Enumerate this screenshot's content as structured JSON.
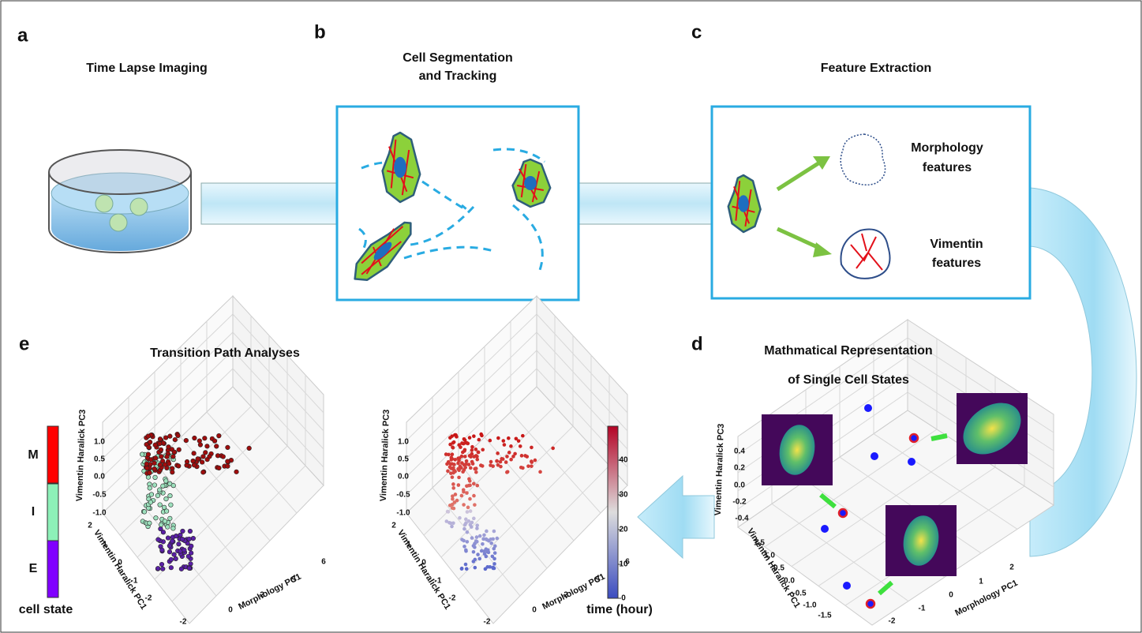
{
  "panel_a": {
    "letter": "a",
    "title": "Time Lapse Imaging"
  },
  "panel_b": {
    "letter": "b",
    "title": [
      "Cell Segmentation",
      "and Tracking"
    ]
  },
  "panel_c": {
    "letter": "c",
    "title": "Feature Extraction",
    "morphology_label": [
      "Morphology",
      "features"
    ],
    "vimentin_label": [
      "Vimentin",
      "features"
    ]
  },
  "panel_d": {
    "letter": "d",
    "title": [
      "Mathmatical Representation",
      "of Single Cell States"
    ],
    "plot": {
      "zlabel": "Vimentin Haralick PC3",
      "ylabel": "Vimentin Haralick PC1",
      "xlabel": "Morphology PC1",
      "zticks": [
        "0.4",
        "0.2",
        "0.0",
        "-0.2",
        "-0.4"
      ],
      "yticks": [
        "1.5",
        "1.0",
        "0.5",
        "0.0",
        "-0.5",
        "-1.0",
        "-1.5"
      ],
      "xticks": [
        -2,
        -1,
        0,
        1,
        2
      ]
    }
  },
  "panel_e": {
    "letter": "e",
    "title": "Transition Path Analyses",
    "state_bar": {
      "labels": [
        "M",
        "I",
        "E"
      ],
      "title": "cell state"
    },
    "plots": [
      {
        "zlabel": "Vimentin Haralick PC3",
        "ylabel": "Vimentin Haralick PC1",
        "xlabel": "Morphology PC1",
        "zticks": [
          "1.0",
          "0.5",
          "0.0",
          "-0.5",
          "-1.0"
        ],
        "yticks": [
          2,
          1,
          0,
          -1,
          -2
        ],
        "xticks": [
          -2,
          0,
          2,
          4,
          6
        ]
      },
      {
        "zlabel": "Vimentin Haralick PC3",
        "ylabel": "Vimentin Haralick PC1",
        "xlabel": "Morphology PC1",
        "zticks": [
          "1.0",
          "0.5",
          "0.0",
          "-0.5",
          "-1.0"
        ],
        "yticks": [
          2,
          1,
          0,
          -1,
          -2
        ],
        "xticks": [
          -2,
          0,
          2,
          4,
          6
        ]
      }
    ],
    "colorbar": {
      "ticks": [
        0,
        10,
        20,
        30,
        40
      ],
      "label": "time (hour)"
    }
  }
}
